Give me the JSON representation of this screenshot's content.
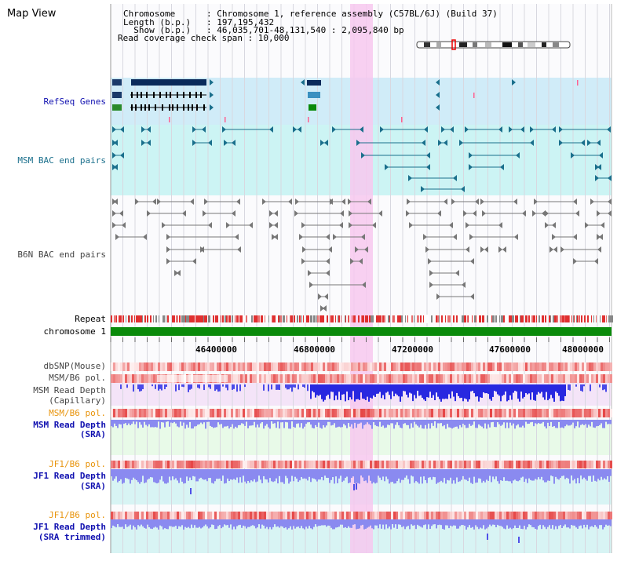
{
  "title": "Map View",
  "header": {
    "rows": [
      {
        "label": "Chromosome      ",
        "value": "Chromosome 1, reference assembly (C57BL/6J) (Build 37)"
      },
      {
        "label": "Length (b.p.)   ",
        "value": "197,195,432"
      },
      {
        "label": "  Show (b.p.)   ",
        "value": "46,035,701-48,131,540 : 2,095,840 bp"
      }
    ],
    "read_coverage": "Read coverage check span : 10,000"
  },
  "tracks": {
    "refseq": "RefSeq Genes",
    "msm_bac": "MSM BAC end pairs",
    "b6n_bac": "B6N BAC end pairs",
    "repeat": "Repeat",
    "chromosome": "chromosome 1",
    "dbsnp": "dbSNP(Mouse)",
    "msm_b6_pol1": "MSM/B6 pol.",
    "msm_read_depth_cap_1": "MSM Read Depth",
    "msm_read_depth_cap_2": "(Capillary)",
    "msm_b6_pol2": "MSM/B6 pol.",
    "msm_read_depth_sra_1": "MSM Read Depth",
    "msm_read_depth_sra_2": "(SRA)",
    "jf1_b6_pol1": "JF1/B6 pol.",
    "jf1_read_depth_sra_1": "JF1 Read Depth",
    "jf1_read_depth_sra_2": "(SRA)",
    "jf1_b6_pol2": "JF1/B6 pol.",
    "jf1_read_depth_trim_1": "JF1 Read Depth",
    "jf1_read_depth_trim_2": "(SRA trimmed)"
  },
  "axis": {
    "ticks": [
      "46400000",
      "46800000",
      "47200000",
      "47600000",
      "48000000"
    ]
  },
  "colors": {
    "refseq_bg": "#d0ecf8",
    "msm_bg": "#ccf4f4",
    "highlight": "#f7c8ef",
    "repeat_red": "#e03030",
    "chrom_green": "#0a8a0a",
    "label_blue": "#1010b0",
    "label_teal": "#1a6f8c",
    "label_orange": "#e8940c",
    "depth_blue": "#2828e0",
    "depth_light": "#8a8af0"
  }
}
